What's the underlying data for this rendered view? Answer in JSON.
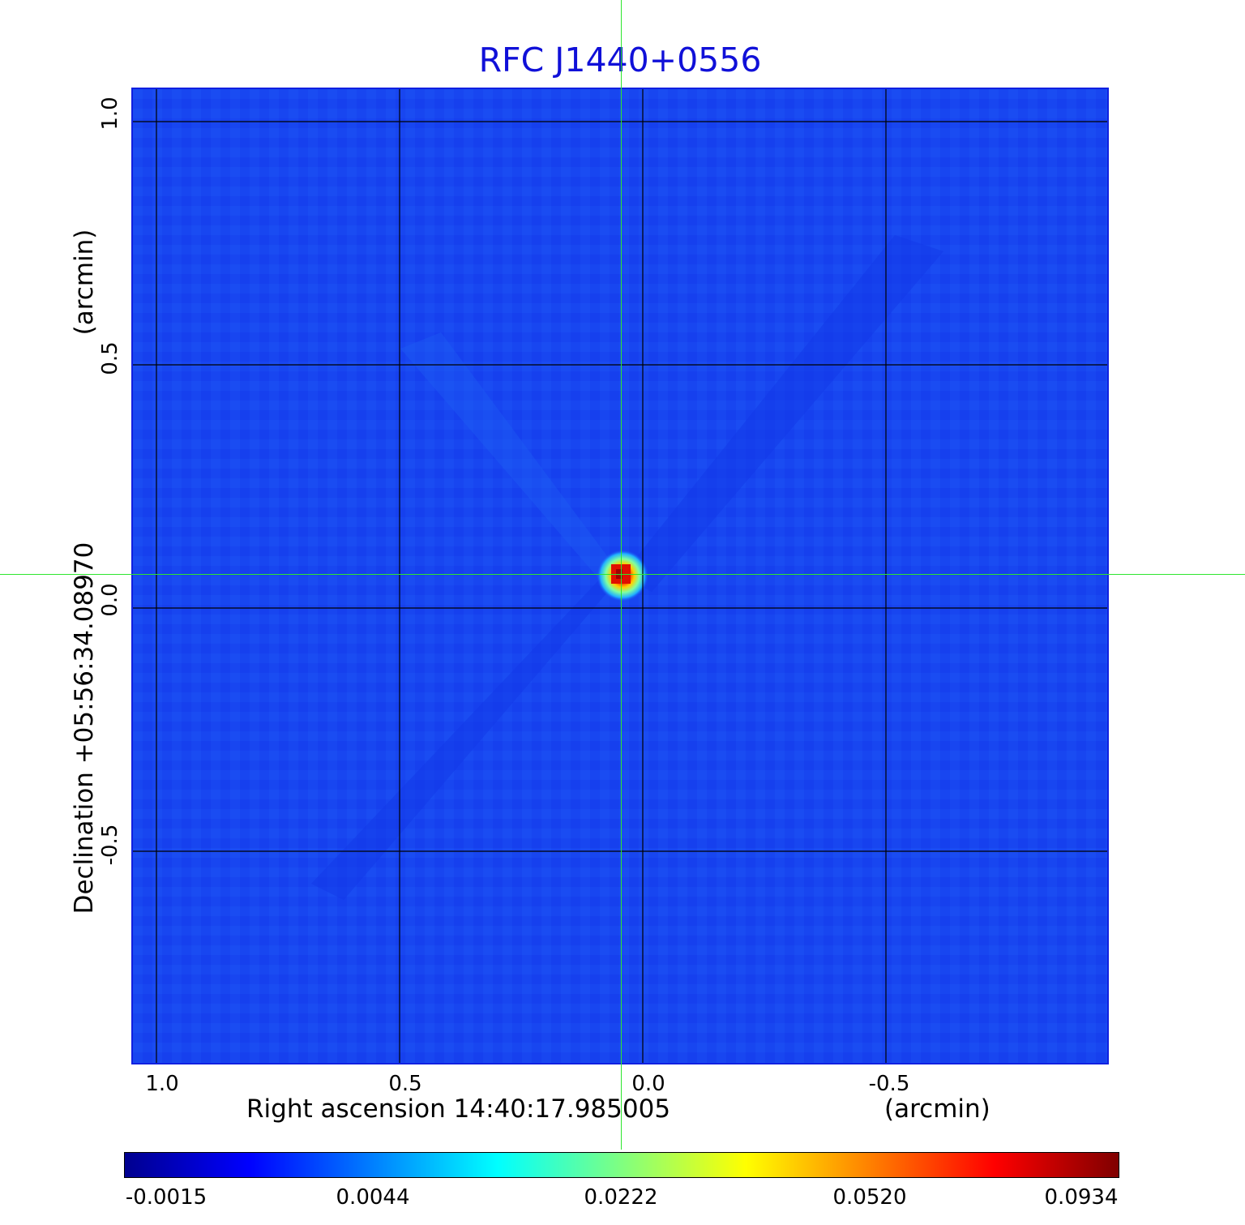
{
  "title": "RFC J1440+0556",
  "x_axis": {
    "label": "Right ascension  14:40:17.985005",
    "unit": "(arcmin)",
    "ticks": [
      "1.0",
      "0.5",
      "0.0",
      "-0.5"
    ]
  },
  "y_axis": {
    "label": "Declination  +05:56:34.08970",
    "unit": "(arcmin)",
    "ticks": [
      "1.0",
      "0.5",
      "0.0",
      "-0.5"
    ]
  },
  "colorbar": {
    "ticks": [
      "-0.0015",
      "0.0044",
      "0.0222",
      "0.0520",
      "0.0934"
    ],
    "colors": [
      "#00008f",
      "#0000ff",
      "#0080ff",
      "#00ffff",
      "#80ff80",
      "#ffff00",
      "#ff8000",
      "#ff0000",
      "#800000"
    ]
  },
  "colors": {
    "background_field": "#1846f0",
    "crosshair": "#2ee62e",
    "title": "#1010d8"
  }
}
